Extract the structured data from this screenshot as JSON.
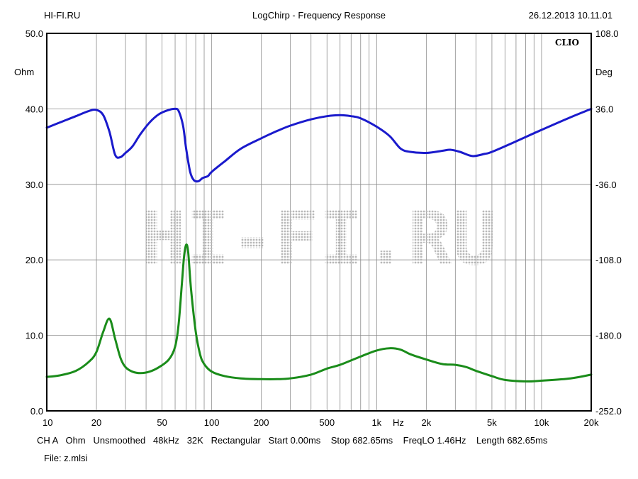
{
  "header": {
    "left": "HI-FI.RU",
    "center": "LogChirp - Frequency Response",
    "right": "26.12.2013 10.11.01"
  },
  "brand": "CLIO",
  "watermark": "HI-FI.RU",
  "footer": {
    "settings": "CH A   Ohm   Unsmoothed   48kHz   32K   Rectangular   Start 0.00ms    Stop 682.65ms    FreqLO 1.46Hz    Length 682.65ms",
    "file": "File: z.mlsi"
  },
  "chart_data": {
    "type": "line",
    "title": "LogChirp - Frequency Response",
    "x_scale": "log",
    "xlim": [
      10,
      20000
    ],
    "ylim_left": [
      0,
      50
    ],
    "ylim_right": [
      -252,
      108
    ],
    "ylabel_left": "Ohm",
    "ylabel_right": "Deg",
    "xlabel": "Hz",
    "grid": true,
    "left_ticks": [
      "0.0",
      "10.0",
      "20.0",
      "30.0",
      "40.0",
      "50.0"
    ],
    "right_ticks": [
      "-252.0",
      "-180.0",
      "-108.0",
      "-36.0",
      "36.0",
      "108.0"
    ],
    "x_ticks": [
      {
        "value": 10,
        "label": "10"
      },
      {
        "value": 20,
        "label": "20"
      },
      {
        "value": 50,
        "label": "50"
      },
      {
        "value": 100,
        "label": "100"
      },
      {
        "value": 200,
        "label": "200"
      },
      {
        "value": 500,
        "label": "500"
      },
      {
        "value": 1000,
        "label": "1k"
      },
      {
        "value": 2000,
        "label": "2k"
      },
      {
        "value": 5000,
        "label": "5k"
      },
      {
        "value": 10000,
        "label": "10k"
      },
      {
        "value": 20000,
        "label": "20k"
      }
    ],
    "series": [
      {
        "axis": "right",
        "color": "#1a1acc",
        "points": [
          [
            10,
            18
          ],
          [
            12,
            23
          ],
          [
            15,
            29
          ],
          [
            18,
            34
          ],
          [
            20,
            35
          ],
          [
            22,
            30
          ],
          [
            24,
            14
          ],
          [
            26,
            -8
          ],
          [
            28,
            -10
          ],
          [
            30,
            -6
          ],
          [
            33,
            0
          ],
          [
            37,
            12
          ],
          [
            42,
            23
          ],
          [
            48,
            31
          ],
          [
            55,
            35
          ],
          [
            60,
            36
          ],
          [
            63,
            34
          ],
          [
            67,
            20
          ],
          [
            70,
            -2
          ],
          [
            74,
            -24
          ],
          [
            78,
            -32
          ],
          [
            83,
            -33
          ],
          [
            88,
            -30
          ],
          [
            95,
            -28
          ],
          [
            100,
            -24
          ],
          [
            120,
            -14
          ],
          [
            150,
            -2
          ],
          [
            200,
            8
          ],
          [
            250,
            15
          ],
          [
            300,
            20
          ],
          [
            400,
            26
          ],
          [
            500,
            29
          ],
          [
            600,
            30
          ],
          [
            700,
            29
          ],
          [
            800,
            27
          ],
          [
            1000,
            19
          ],
          [
            1200,
            10
          ],
          [
            1400,
            -2
          ],
          [
            1600,
            -5
          ],
          [
            2000,
            -6
          ],
          [
            2500,
            -4
          ],
          [
            2800,
            -3
          ],
          [
            3200,
            -5
          ],
          [
            3800,
            -9
          ],
          [
            4500,
            -7
          ],
          [
            5000,
            -5
          ],
          [
            7000,
            5
          ],
          [
            10000,
            16
          ],
          [
            15000,
            28
          ],
          [
            20000,
            36
          ]
        ]
      },
      {
        "axis": "left",
        "color": "#1a8c1a",
        "points": [
          [
            10,
            4.5
          ],
          [
            12,
            4.7
          ],
          [
            15,
            5.3
          ],
          [
            18,
            6.5
          ],
          [
            20,
            7.8
          ],
          [
            22,
            10.5
          ],
          [
            24,
            12.2
          ],
          [
            26,
            9.5
          ],
          [
            28,
            7
          ],
          [
            30,
            5.8
          ],
          [
            33,
            5.2
          ],
          [
            37,
            5
          ],
          [
            42,
            5.2
          ],
          [
            48,
            5.8
          ],
          [
            55,
            6.8
          ],
          [
            60,
            8.5
          ],
          [
            63,
            11.5
          ],
          [
            66,
            17
          ],
          [
            68,
            20.5
          ],
          [
            70,
            22
          ],
          [
            72,
            21
          ],
          [
            75,
            16
          ],
          [
            80,
            10.5
          ],
          [
            85,
            7.5
          ],
          [
            90,
            6.2
          ],
          [
            100,
            5.2
          ],
          [
            120,
            4.6
          ],
          [
            150,
            4.3
          ],
          [
            200,
            4.2
          ],
          [
            250,
            4.2
          ],
          [
            300,
            4.3
          ],
          [
            400,
            4.8
          ],
          [
            500,
            5.6
          ],
          [
            600,
            6.1
          ],
          [
            800,
            7.2
          ],
          [
            1000,
            8
          ],
          [
            1200,
            8.3
          ],
          [
            1400,
            8.1
          ],
          [
            1600,
            7.5
          ],
          [
            2000,
            6.8
          ],
          [
            2500,
            6.2
          ],
          [
            3000,
            6.1
          ],
          [
            3500,
            5.8
          ],
          [
            4000,
            5.3
          ],
          [
            5000,
            4.6
          ],
          [
            6000,
            4.1
          ],
          [
            8000,
            3.9
          ],
          [
            10000,
            4
          ],
          [
            15000,
            4.3
          ],
          [
            20000,
            4.8
          ]
        ]
      }
    ]
  }
}
